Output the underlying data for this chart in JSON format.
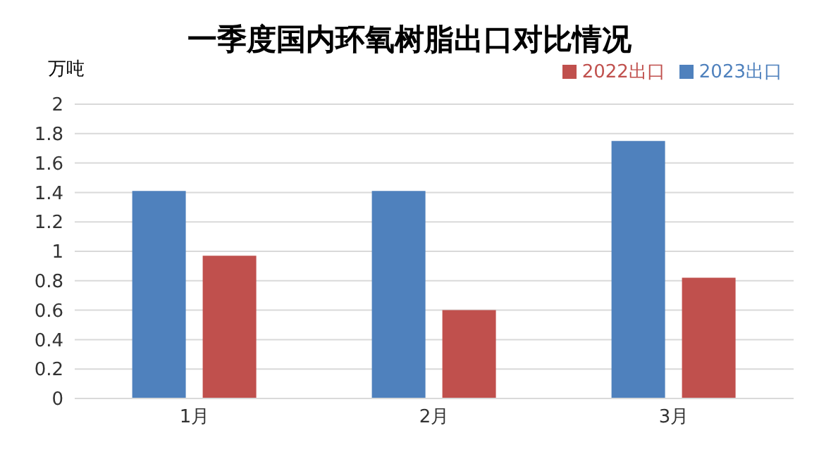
{
  "chart_data": {
    "type": "bar",
    "title": "一季度国内环氧树脂出口对比情况",
    "ylabel": "万吨",
    "categories": [
      "1月",
      "2月",
      "3月"
    ],
    "series": [
      {
        "name": "2023出口",
        "color": "#4f81bd",
        "values": [
          1.41,
          1.41,
          1.75
        ]
      },
      {
        "name": "2022出口",
        "color": "#c0504d",
        "values": [
          0.97,
          0.6,
          0.82
        ]
      }
    ],
    "ylim": [
      0,
      2
    ],
    "yticks": [
      0,
      0.2,
      0.4,
      0.6,
      0.8,
      1,
      1.2,
      1.4,
      1.6,
      1.8,
      2
    ],
    "grid": "y",
    "legend": "top right"
  }
}
